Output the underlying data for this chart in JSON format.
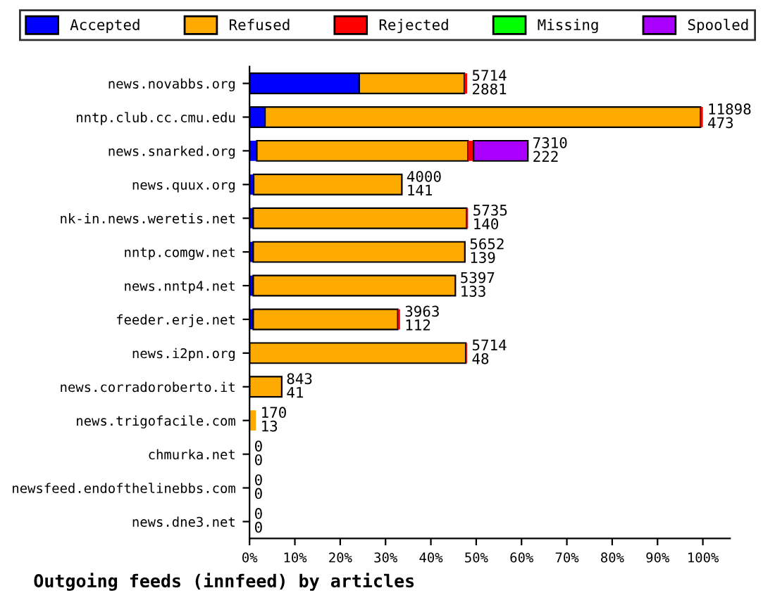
{
  "chart_data": {
    "type": "bar",
    "orientation": "horizontal",
    "stacked": true,
    "xlabel": "Outgoing feeds (innfeed) by articles",
    "categories": [
      "news.novabbs.org",
      "nntp.club.cc.cmu.edu",
      "news.snarked.org",
      "news.quux.org",
      "nk-in.news.weretis.net",
      "nntp.comgw.net",
      "news.nntp4.net",
      "feeder.erje.net",
      "news.i2pn.org",
      "news.corradoroberto.it",
      "news.trigofacile.com",
      "chmurka.net",
      "newsfeed.endofthelinebbs.com",
      "news.dne3.net"
    ],
    "series": [
      {
        "name": "Accepted",
        "color": "#0000ff",
        "values": [
          24.2,
          3.4,
          1.6,
          0.9,
          0.8,
          0.8,
          0.8,
          0.8,
          0,
          0,
          0,
          0,
          0,
          0
        ]
      },
      {
        "name": "Refused",
        "color": "#ffaa00",
        "values": [
          23.2,
          96.1,
          46.6,
          32.7,
          47.1,
          46.7,
          44.6,
          31.9,
          47.7,
          7.1,
          1.4,
          0,
          0,
          0
        ]
      },
      {
        "name": "Rejected",
        "color": "#ff0000",
        "values": [
          0.6,
          0.5,
          1.2,
          0,
          0.3,
          0,
          0,
          0.5,
          0.3,
          0,
          0,
          0,
          0,
          0
        ]
      },
      {
        "name": "Missing",
        "color": "#00ff00",
        "values": [
          0,
          0,
          0,
          0,
          0,
          0,
          0,
          0,
          0,
          0,
          0,
          0,
          0,
          0
        ]
      },
      {
        "name": "Spooled",
        "color": "#aa00ff",
        "values": [
          0,
          0,
          12.0,
          0,
          0,
          0,
          0,
          null,
          0,
          0,
          0,
          0,
          0,
          0
        ]
      }
    ],
    "value_labels": [
      "5714\n2881",
      "11898\n473",
      "7310\n222",
      "4000\n141",
      "5735\n140",
      "5652\n139",
      "5397\n133",
      "3963\n112",
      "5714\n48",
      "843\n41",
      "170\n13",
      "0\n0",
      "0\n0",
      "0\n0"
    ],
    "xlim": [
      0,
      106
    ],
    "xticks": [
      {
        "value": 0,
        "label": "0%"
      },
      {
        "value": 10,
        "label": "10%"
      },
      {
        "value": 20,
        "label": "20%"
      },
      {
        "value": 30,
        "label": "30%"
      },
      {
        "value": 40,
        "label": "40%"
      },
      {
        "value": 50,
        "label": "50%"
      },
      {
        "value": 60,
        "label": "60%"
      },
      {
        "value": 70,
        "label": "70%"
      },
      {
        "value": 80,
        "label": "80%"
      },
      {
        "value": 90,
        "label": "90%"
      },
      {
        "value": 100,
        "label": "100%"
      }
    ],
    "legend": "top",
    "grid": false
  }
}
